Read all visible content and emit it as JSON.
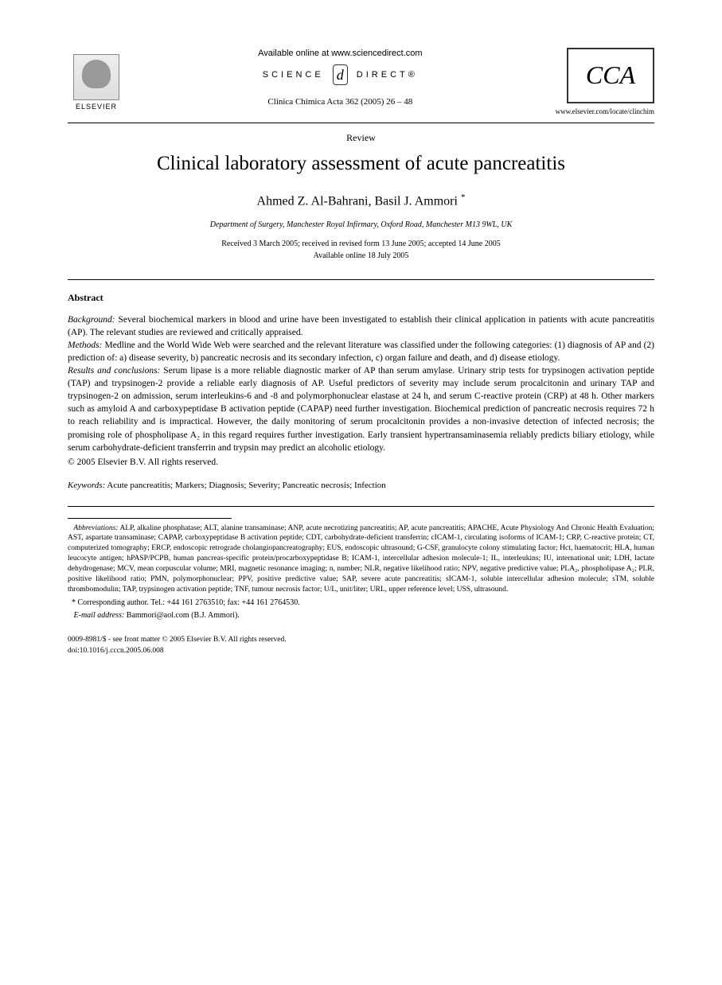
{
  "header": {
    "publisher_name": "ELSEVIER",
    "available_online": "Available online at www.sciencedirect.com",
    "science_direct_left": "SCIENCE",
    "science_direct_d": "d",
    "science_direct_right": "DIRECT®",
    "journal_ref": "Clinica Chimica Acta 362 (2005) 26 – 48",
    "journal_logo_text": "CCA",
    "journal_url": "www.elsevier.com/locate/clinchim"
  },
  "article": {
    "type": "Review",
    "title": "Clinical laboratory assessment of acute pancreatitis",
    "authors": "Ahmed Z. Al-Bahrani, Basil J. Ammori",
    "corr_mark": "*",
    "affiliation": "Department of Surgery, Manchester Royal Infirmary, Oxford Road, Manchester M13 9WL, UK",
    "received": "Received 3 March 2005; received in revised form 13 June 2005; accepted 14 June 2005",
    "available": "Available online 18 July 2005"
  },
  "abstract": {
    "heading": "Abstract",
    "background_label": "Background:",
    "background": " Several biochemical markers in blood and urine have been investigated to establish their clinical application in patients with acute pancreatitis (AP). The relevant studies are reviewed and critically appraised.",
    "methods_label": "Methods:",
    "methods": " Medline and the World Wide Web were searched and the relevant literature was classified under the following categories: (1) diagnosis of AP and (2) prediction of: a) disease severity, b) pancreatic necrosis and its secondary infection, c) organ failure and death, and d) disease etiology.",
    "results_label": "Results and conclusions:",
    "results": " Serum lipase is a more reliable diagnostic marker of AP than serum amylase. Urinary strip tests for trypsinogen activation peptide (TAP) and trypsinogen-2 provide a reliable early diagnosis of AP. Useful predictors of severity may include serum procalcitonin and urinary TAP and trypsinogen-2 on admission, serum interleukins-6 and -8 and polymorphonuclear elastase at 24 h, and serum C-reactive protein (CRP) at 48 h. Other markers such as amyloid A and carboxypeptidase B activation peptide (CAPAP) need further investigation. Biochemical prediction of pancreatic necrosis requires 72 h to reach reliability and is impractical. However, the daily monitoring of serum procalcitonin provides a non-invasive detection of infected necrosis; the promising role of phospholipase A₂ in this regard requires further investigation. Early transient hypertransaminasemia reliably predicts biliary etiology, while serum carbohydrate-deficient transferrin and trypsin may predict an alcoholic etiology.",
    "copyright": "© 2005 Elsevier B.V. All rights reserved."
  },
  "keywords": {
    "label": "Keywords:",
    "text": " Acute pancreatitis; Markers; Diagnosis; Severity; Pancreatic necrosis; Infection"
  },
  "footnotes": {
    "abbrev_label": "Abbreviations:",
    "abbreviations": " ALP, alkaline phosphatase; ALT, alanine transaminase; ANP, acute necrotizing pancreatitis; AP, acute pancreatitis; APACHE, Acute Physiology And Chronic Health Evaluation; AST, aspartate transaminase; CAPAP, carboxypeptidase B activation peptide; CDT, carbohydrate-deficient transferrin; cICAM-1, circulating isoforms of ICAM-1; CRP, C-reactive protein; CT, computerized tomography; ERCP, endoscopic retrograde cholangiopancreatography; EUS, endoscopic ultrasound; G-CSF, granulocyte colony stimulating factor; Hct, haematocrit; HLA, human leucocyte antigen; hPASP/PCPB, human pancreas-specific protein/procarboxypeptidase B; ICAM-1, intercellular adhesion molecule-1; IL, interleukins; IU, international unit; LDH, lactate dehydrogenase; MCV, mean corpuscular volume; MRI, magnetic resonance imaging; n, number; NLR, negative likelihood ratio; NPV, negative predictive value; PLA₂, phospholipase A₂; PLR, positive likelihood ratio; PMN, polymorphonuclear; PPV, positive predictive value; SAP, severe acute pancreatitis; sICAM-1, soluble intercellular adhesion molecule; sTM, soluble thrombomodulin; TAP, trypsinogen activation peptide; TNF, tumour necrosis factor; U/L, unit/liter; URL, upper reference level; USS, ultrasound.",
    "corresponding": "* Corresponding author. Tel.: +44 161 2763510; fax: +44 161 2764530.",
    "email_label": "E-mail address:",
    "email": " Bammori@aol.com (B.J. Ammori)."
  },
  "footer": {
    "line1": "0009-8981/$ - see front matter © 2005 Elsevier B.V. All rights reserved.",
    "line2": "doi:10.1016/j.cccn.2005.06.008"
  }
}
